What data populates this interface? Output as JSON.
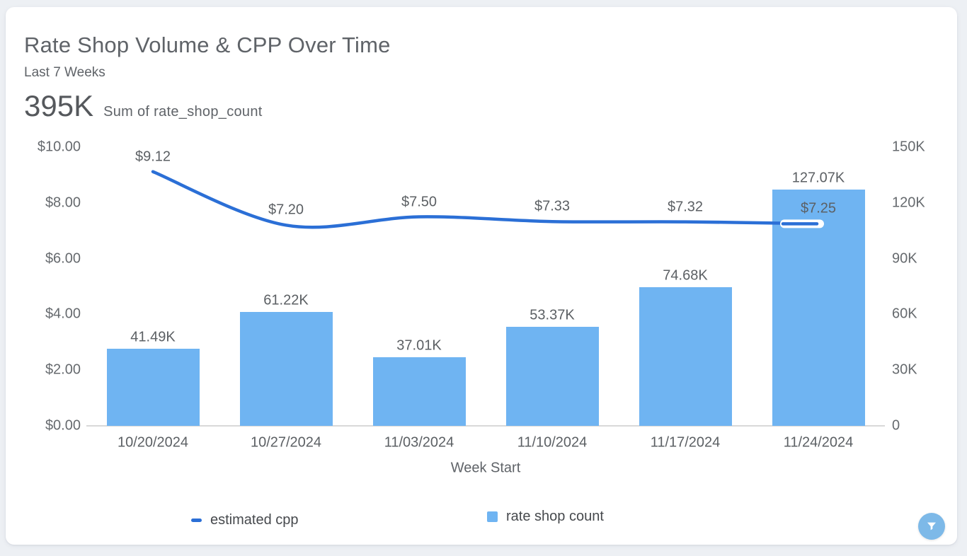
{
  "card": {
    "title": "Rate Shop Volume & CPP Over Time",
    "subtitle": "Last 7 Weeks",
    "kpi_value": "395K",
    "kpi_caption": "Sum of rate_shop_count"
  },
  "colors": {
    "bar": "#6fb4f2",
    "line": "#2b6fd6",
    "fab": "#7db9e8",
    "axis_text": "#666a6e",
    "label_text": "#5c6064",
    "baseline": "#d9d9d9",
    "card_bg": "#ffffff",
    "page_bg": "#edf0f4"
  },
  "legend": [
    {
      "label": "estimated cpp",
      "marker": "line"
    },
    {
      "label": "rate shop count",
      "marker": "square"
    }
  ],
  "fab": {
    "icon": "filter-funnel-icon"
  },
  "chart_data": {
    "type": "combo",
    "title": "Rate Shop Volume & CPP Over Time",
    "subtitle": "Last 7 Weeks",
    "total_label": "395K Sum of rate_shop_count",
    "xlabel": "Week Start",
    "categories": [
      "10/20/2024",
      "10/27/2024",
      "11/03/2024",
      "11/10/2024",
      "11/17/2024",
      "11/24/2024"
    ],
    "series": [
      {
        "name": "estimated cpp",
        "type": "line",
        "axis": "left",
        "values": [
          9.12,
          7.2,
          7.5,
          7.33,
          7.32,
          7.25
        ],
        "labels": [
          "$9.12",
          "$7.20",
          "$7.50",
          "$7.33",
          "$7.32",
          "$7.25"
        ]
      },
      {
        "name": "rate shop count",
        "type": "bar",
        "axis": "right",
        "values": [
          41490,
          61220,
          37010,
          53370,
          74680,
          127070
        ],
        "labels": [
          "41.49K",
          "61.22K",
          "37.01K",
          "53.37K",
          "74.68K",
          "127.07K"
        ]
      }
    ],
    "left_axis": {
      "min": 0,
      "max": 10,
      "ticks": [
        "$10.00",
        "$8.00",
        "$6.00",
        "$4.00",
        "$2.00",
        "$0.00"
      ],
      "tick_values": [
        10,
        8,
        6,
        4,
        2,
        0
      ]
    },
    "right_axis": {
      "min": 0,
      "max": 150000,
      "ticks": [
        "150K",
        "120K",
        "90K",
        "60K",
        "30K",
        "0"
      ],
      "tick_values": [
        150000,
        120000,
        90000,
        60000,
        30000,
        0
      ]
    },
    "grid": false,
    "legend_position": "bottom"
  }
}
